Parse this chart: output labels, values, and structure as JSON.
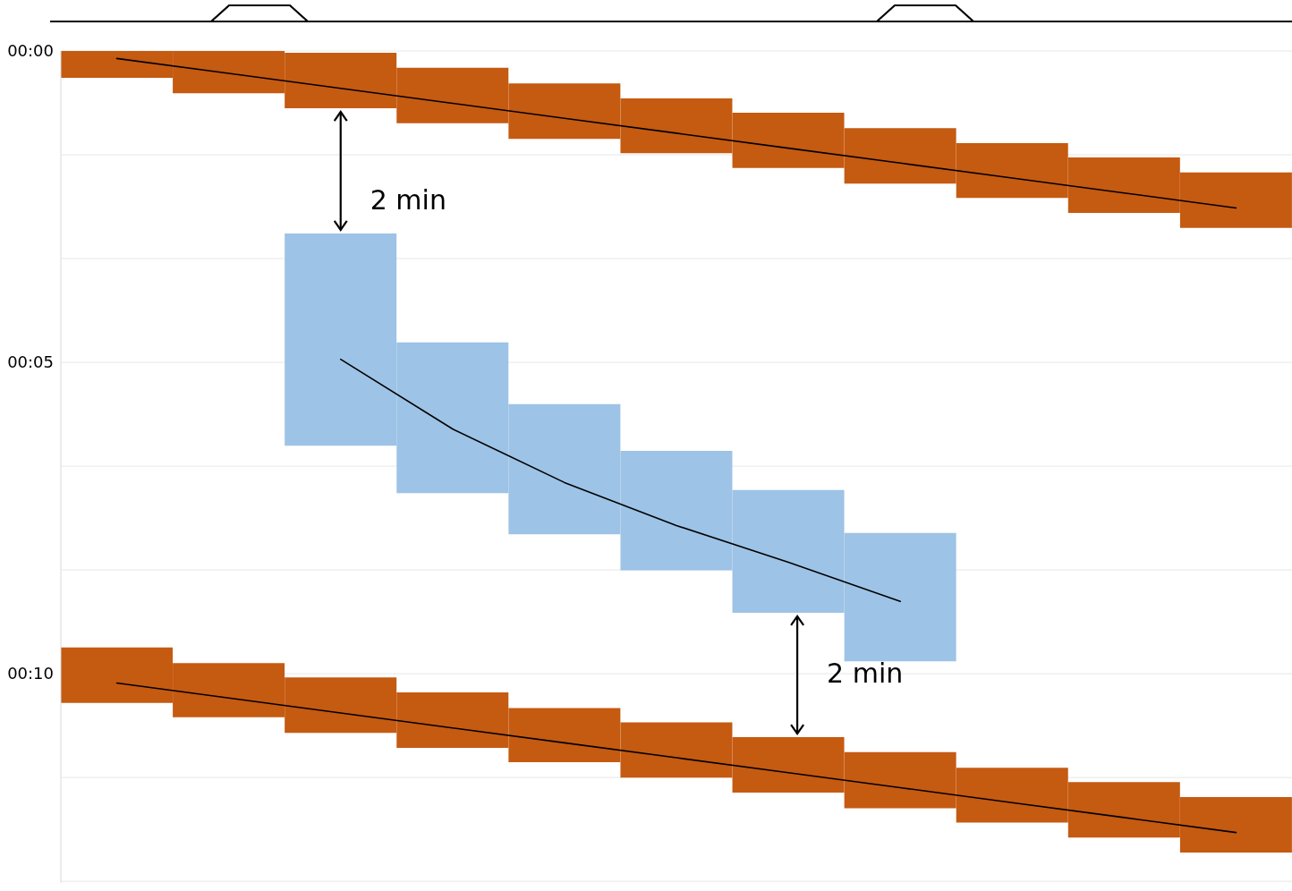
{
  "chart_data": {
    "type": "bar",
    "categories": [
      null,
      null,
      null,
      null,
      null,
      null,
      null,
      null,
      null,
      null,
      null
    ],
    "series": [
      {
        "color": "#c55a11",
        "base": [
          0,
          0,
          0.03,
          0.27,
          0.52,
          0.76,
          0.99,
          1.24,
          1.48,
          1.71,
          1.95
        ],
        "values": [
          0.43,
          0.68,
          0.89,
          0.89,
          0.89,
          0.88,
          0.89,
          0.89,
          0.88,
          0.89,
          0.89
        ]
      },
      {
        "color": "#9dc3e6",
        "base": [
          null,
          null,
          2.93,
          4.68,
          5.67,
          6.42,
          7.05,
          7.74,
          null,
          null,
          null
        ],
        "values": [
          null,
          null,
          3.41,
          2.42,
          2.09,
          1.92,
          1.97,
          2.06,
          null,
          null,
          null
        ]
      },
      {
        "color": "#c55a11",
        "base": [
          9.58,
          9.83,
          10.06,
          10.3,
          10.55,
          10.78,
          11.02,
          11.26,
          11.51,
          11.74,
          11.98
        ],
        "values": [
          0.89,
          0.87,
          0.89,
          0.89,
          0.87,
          0.89,
          0.89,
          0.9,
          0.88,
          0.89,
          0.89
        ]
      },
      {
        "type": "line",
        "color": "#000000",
        "values": [
          0.12,
          0.36,
          0.6,
          0.84,
          1.08,
          1.32,
          1.56,
          1.8,
          2.04,
          2.28,
          2.52
        ]
      },
      {
        "type": "line",
        "color": "#000000",
        "values": [
          null,
          null,
          4.95,
          6.07,
          6.93,
          7.62,
          8.21,
          8.84,
          null,
          null,
          null
        ]
      },
      {
        "type": "line",
        "color": "#000000",
        "values": [
          10.15,
          10.39,
          10.63,
          10.87,
          11.11,
          11.35,
          11.59,
          11.83,
          12.07,
          12.31,
          12.55
        ]
      }
    ],
    "ylim": [
      13.36,
      0
    ],
    "yticks": [
      {
        "value": 0,
        "label": "00:00"
      },
      {
        "value": 1.667,
        "label": null
      },
      {
        "value": 3.333,
        "label": null
      },
      {
        "value": 5,
        "label": "00:05"
      },
      {
        "value": 6.667,
        "label": null
      },
      {
        "value": 8.333,
        "label": null
      },
      {
        "value": 10,
        "label": "00:10"
      },
      {
        "value": 11.667,
        "label": null
      },
      {
        "value": 13.333,
        "label": null
      }
    ],
    "grid": "y",
    "tick_labels": "y",
    "annotations": [
      "2 min",
      "2 min"
    ]
  }
}
